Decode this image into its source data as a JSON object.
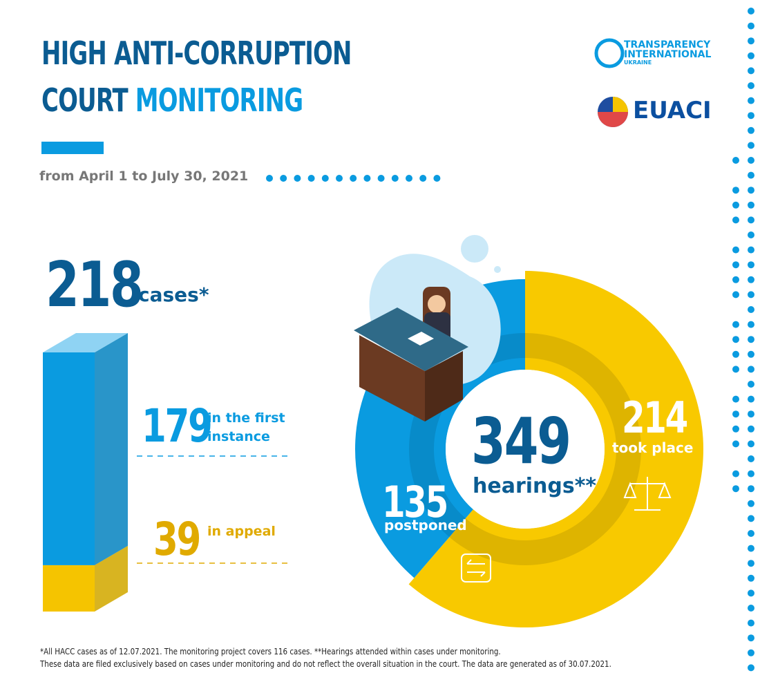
{
  "header": {
    "title_line1": "HIGH ANTI-CORRUPTION",
    "title_line2_a": "COURT",
    "title_line2_b": "MONITORING",
    "period": "from April 1 to July 30, 2021"
  },
  "logos": {
    "ti": [
      "TRANSPARENCY",
      "INTERNATIONAL",
      "UKRAINE"
    ],
    "euaci": "EUACI"
  },
  "cases": {
    "total": 218,
    "label": "cases*",
    "parts": [
      {
        "value": 179,
        "label": "in the first instance",
        "color": "#0a9be0"
      },
      {
        "value": 39,
        "label": "in appeal",
        "color": "#f5c400"
      }
    ]
  },
  "hearings": {
    "total": 349,
    "label": "hearings**",
    "parts": [
      {
        "value": 214,
        "label": "took place",
        "color": "#f8c900"
      },
      {
        "value": 135,
        "label": "postponed",
        "color": "#0a9be0"
      }
    ]
  },
  "footnotes": [
    "*All HACC cases as of 12.07.2021. The monitoring project covers 116 cases. **Hearings attended within cases under monitoring.",
    "These data are filed exclusively based on cases under monitoring and do not reflect the overall situation in the court. The data are generated as of 30.07.2021."
  ]
}
